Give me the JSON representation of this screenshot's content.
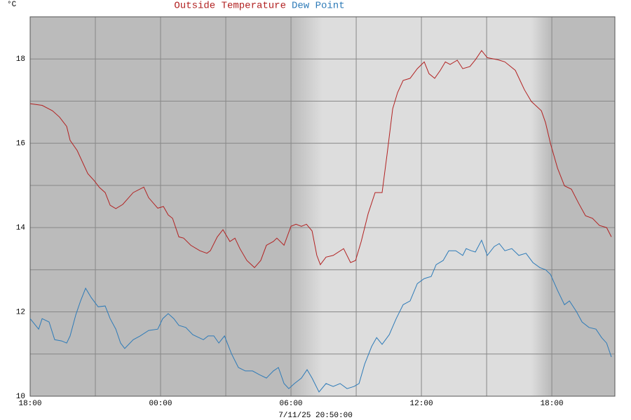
{
  "chart_data": {
    "type": "line",
    "y_unit": "°C",
    "timestamp": "7/11/25 20:50:00",
    "xlim": [
      18,
      44.9
    ],
    "ylim": [
      10,
      19
    ],
    "xticks": [
      {
        "value": 18,
        "label": "18:00"
      },
      {
        "value": 24,
        "label": "00:00"
      },
      {
        "value": 30,
        "label": "06:00"
      },
      {
        "value": 36,
        "label": "12:00"
      },
      {
        "value": 42,
        "label": "18:00"
      }
    ],
    "x_minor_ticks": [
      21,
      27,
      33,
      39
    ],
    "yticks": [
      10,
      12,
      14,
      16,
      18
    ],
    "y_minor_ticks": [
      11,
      13,
      15,
      17
    ],
    "grid": true,
    "series": [
      {
        "name": "Outside Temperature",
        "color": "#b22222",
        "x": [
          18.0,
          18.55,
          19.03,
          19.35,
          19.68,
          19.84,
          20.16,
          20.65,
          20.97,
          21.19,
          21.45,
          21.68,
          21.94,
          22.26,
          22.74,
          23.23,
          23.45,
          23.87,
          24.13,
          24.35,
          24.55,
          24.84,
          25.06,
          25.39,
          25.81,
          26.13,
          26.29,
          26.61,
          26.87,
          27.19,
          27.42,
          27.65,
          27.97,
          28.32,
          28.61,
          28.87,
          29.19,
          29.35,
          29.68,
          30.0,
          30.23,
          30.48,
          30.71,
          30.97,
          31.19,
          31.35,
          31.61,
          31.94,
          32.42,
          32.74,
          32.97,
          33.23,
          33.55,
          33.87,
          34.19,
          34.42,
          34.68,
          34.9,
          35.16,
          35.48,
          35.81,
          36.13,
          36.35,
          36.61,
          36.87,
          37.1,
          37.32,
          37.65,
          37.9,
          38.23,
          38.48,
          38.77,
          39.03,
          39.52,
          39.84,
          40.32,
          40.74,
          41.06,
          41.52,
          41.71,
          41.94,
          42.26,
          42.58,
          42.9,
          43.23,
          43.55,
          43.87,
          44.19,
          44.52,
          44.74
        ],
        "values": [
          16.94,
          16.9,
          16.77,
          16.62,
          16.4,
          16.07,
          15.83,
          15.28,
          15.1,
          14.95,
          14.83,
          14.53,
          14.45,
          14.55,
          14.83,
          14.96,
          14.71,
          14.46,
          14.5,
          14.3,
          14.22,
          13.78,
          13.75,
          13.58,
          13.45,
          13.39,
          13.45,
          13.78,
          13.95,
          13.67,
          13.75,
          13.5,
          13.22,
          13.05,
          13.22,
          13.58,
          13.67,
          13.75,
          13.58,
          14.03,
          14.08,
          14.03,
          14.08,
          13.92,
          13.34,
          13.12,
          13.3,
          13.34,
          13.5,
          13.17,
          13.22,
          13.67,
          14.33,
          14.83,
          14.83,
          15.74,
          16.82,
          17.2,
          17.49,
          17.54,
          17.77,
          17.93,
          17.65,
          17.54,
          17.73,
          17.93,
          17.87,
          17.97,
          17.77,
          17.82,
          17.98,
          18.2,
          18.03,
          17.98,
          17.93,
          17.73,
          17.27,
          16.99,
          16.77,
          16.49,
          15.99,
          15.41,
          14.99,
          14.91,
          14.58,
          14.28,
          14.22,
          14.05,
          14.0,
          13.78
        ]
      },
      {
        "name": "Dew Point",
        "color": "#2e7bb8",
        "x": [
          18.0,
          18.39,
          18.55,
          18.87,
          19.13,
          19.45,
          19.68,
          19.84,
          20.1,
          20.32,
          20.55,
          20.81,
          21.13,
          21.45,
          21.68,
          21.94,
          22.16,
          22.35,
          22.74,
          23.06,
          23.45,
          23.87,
          24.1,
          24.35,
          24.61,
          24.84,
          25.16,
          25.48,
          25.97,
          26.19,
          26.45,
          26.68,
          26.94,
          27.26,
          27.58,
          27.9,
          28.23,
          28.55,
          28.87,
          29.19,
          29.42,
          29.68,
          29.9,
          30.16,
          30.48,
          30.74,
          30.97,
          31.29,
          31.61,
          31.94,
          32.26,
          32.58,
          32.9,
          33.13,
          33.39,
          33.71,
          33.94,
          34.19,
          34.52,
          34.84,
          35.16,
          35.48,
          35.81,
          36.13,
          36.45,
          36.68,
          37.0,
          37.26,
          37.58,
          37.9,
          38.06,
          38.29,
          38.48,
          38.77,
          39.03,
          39.35,
          39.58,
          39.84,
          40.16,
          40.48,
          40.81,
          41.13,
          41.45,
          41.71,
          41.94,
          42.26,
          42.58,
          42.81,
          43.13,
          43.39,
          43.71,
          44.03,
          44.29,
          44.52,
          44.74
        ],
        "values": [
          11.84,
          11.59,
          11.84,
          11.76,
          11.34,
          11.31,
          11.26,
          11.43,
          11.93,
          12.26,
          12.56,
          12.34,
          12.12,
          12.14,
          11.84,
          11.59,
          11.26,
          11.13,
          11.34,
          11.43,
          11.56,
          11.59,
          11.84,
          11.96,
          11.84,
          11.68,
          11.63,
          11.46,
          11.34,
          11.43,
          11.43,
          11.26,
          11.43,
          11.01,
          10.68,
          10.6,
          10.6,
          10.51,
          10.43,
          10.6,
          10.68,
          10.3,
          10.18,
          10.3,
          10.43,
          10.63,
          10.43,
          10.1,
          10.3,
          10.23,
          10.3,
          10.18,
          10.23,
          10.3,
          10.76,
          11.18,
          11.39,
          11.23,
          11.46,
          11.84,
          12.17,
          12.26,
          12.67,
          12.79,
          12.84,
          13.12,
          13.22,
          13.45,
          13.45,
          13.34,
          13.5,
          13.45,
          13.42,
          13.7,
          13.34,
          13.55,
          13.62,
          13.45,
          13.5,
          13.34,
          13.39,
          13.17,
          13.05,
          13.0,
          12.89,
          12.51,
          12.17,
          12.26,
          12.01,
          11.76,
          11.63,
          11.59,
          11.39,
          11.26,
          10.93
        ]
      }
    ]
  }
}
